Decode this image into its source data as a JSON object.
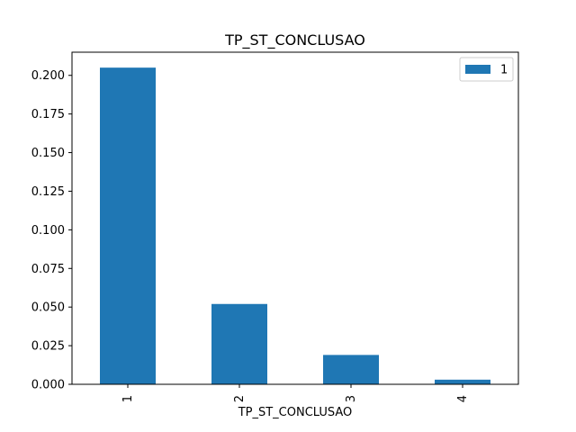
{
  "chart_data": {
    "type": "bar",
    "title": "TP_ST_CONCLUSAO",
    "xlabel": "TP_ST_CONCLUSAO",
    "ylabel": "",
    "categories": [
      "1",
      "2",
      "3",
      "4"
    ],
    "series": [
      {
        "name": "1",
        "values": [
          0.205,
          0.052,
          0.019,
          0.003
        ],
        "color": "#1f77b4"
      }
    ],
    "ylim": [
      0,
      0.215
    ],
    "yticks": [
      0.0,
      0.025,
      0.05,
      0.075,
      0.1,
      0.125,
      0.15,
      0.175,
      0.2
    ],
    "ytick_labels": [
      "0.000",
      "0.025",
      "0.050",
      "0.075",
      "0.100",
      "0.125",
      "0.150",
      "0.175",
      "0.200"
    ],
    "xtick_rotation": 90,
    "grid": false,
    "legend": {
      "placement": "top-right"
    }
  }
}
